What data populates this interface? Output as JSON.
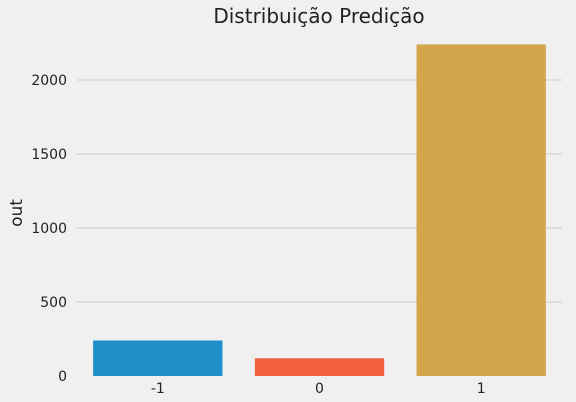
{
  "chart_data": {
    "type": "bar",
    "title": "Distribuição Predição",
    "xlabel": "",
    "ylabel": "out",
    "categories": [
      "-1",
      "0",
      "1"
    ],
    "values": [
      240,
      120,
      2240
    ],
    "colors": [
      "#1f8fca",
      "#f0603e",
      "#d3a64b"
    ],
    "ylim": [
      0,
      2300
    ],
    "yticks": [
      0,
      500,
      1000,
      1500,
      2000
    ],
    "grid": true,
    "background": "#f0f0f0",
    "grid_color": "#cbcbcb"
  }
}
